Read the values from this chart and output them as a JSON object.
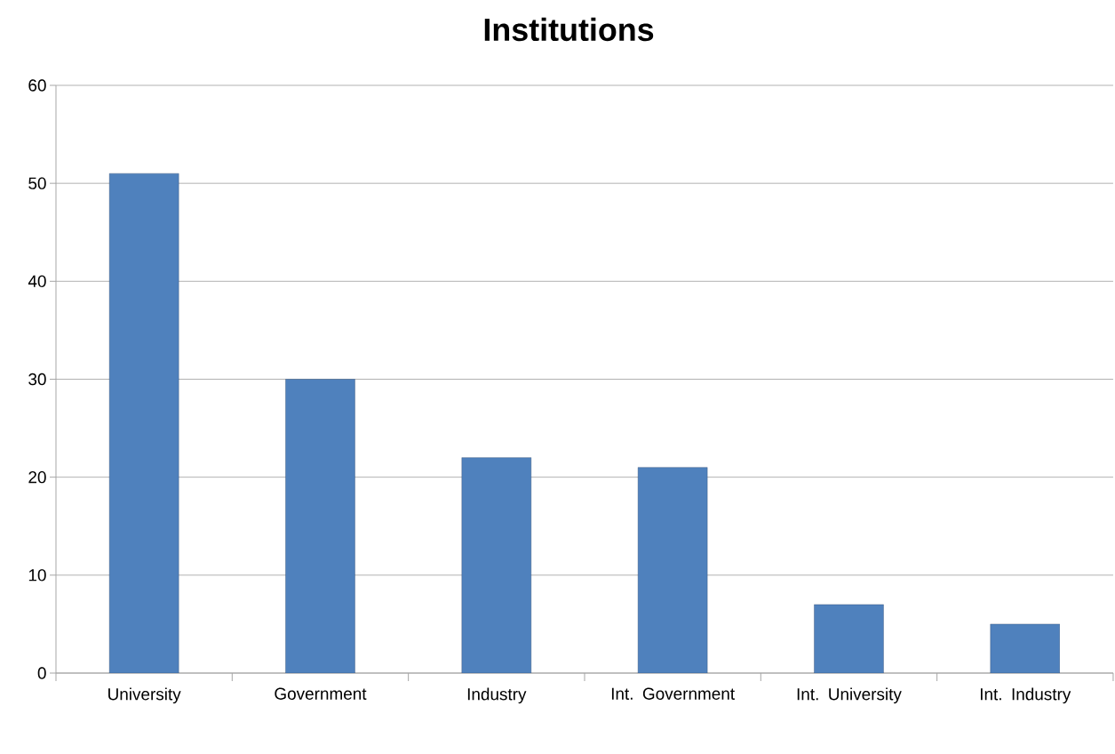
{
  "chart_data": {
    "type": "bar",
    "title": "Institutions",
    "categories": [
      "University",
      "Government",
      "Industry",
      "Int. Government",
      "Int. University",
      "Int. Industry"
    ],
    "values": [
      51,
      30,
      22,
      21,
      7,
      5
    ],
    "color": "#4f81bd",
    "ylim": [
      0,
      60
    ],
    "yticks": [
      0,
      10,
      20,
      30,
      40,
      50,
      60
    ],
    "grid": "y"
  }
}
